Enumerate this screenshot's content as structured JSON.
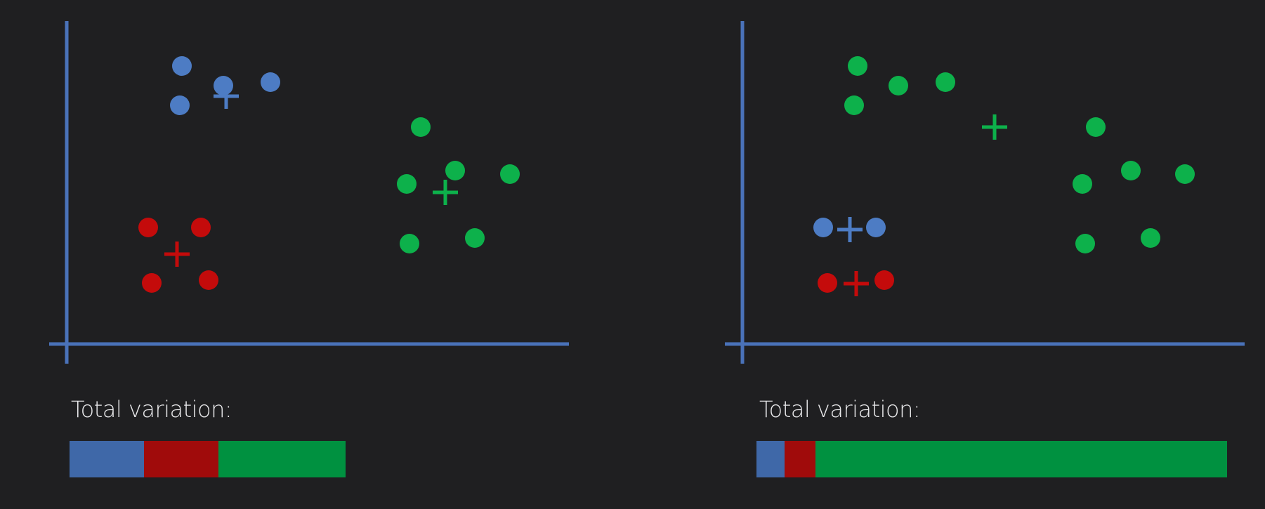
{
  "colors": {
    "background": "#1f1f21",
    "axis": "#4a72b9",
    "blue": "#4d7cc4",
    "red": "#c40b0b",
    "green": "#0db14b",
    "bar_blue": "#3f68a8",
    "bar_red": "#a00b0b",
    "bar_green": "#009140",
    "text": "#e8e8ea"
  },
  "panels": [
    {
      "variation_label": "Total variation:",
      "variation_shares": {
        "blue": 0.27,
        "red": 0.27,
        "green": 0.46
      },
      "clusters": [
        {
          "color": "blue",
          "centroid_index": 0
        },
        {
          "color": "red",
          "centroid_index": 1
        },
        {
          "color": "green",
          "centroid_index": 2
        }
      ]
    },
    {
      "variation_label": "Total variation:",
      "variation_shares": {
        "blue": 0.06,
        "red": 0.065,
        "green": 0.875
      },
      "clusters": [
        {
          "color": "blue",
          "centroid_index": 0
        },
        {
          "color": "red",
          "centroid_index": 1
        },
        {
          "color": "green",
          "centroid_index": 2
        }
      ]
    }
  ]
}
